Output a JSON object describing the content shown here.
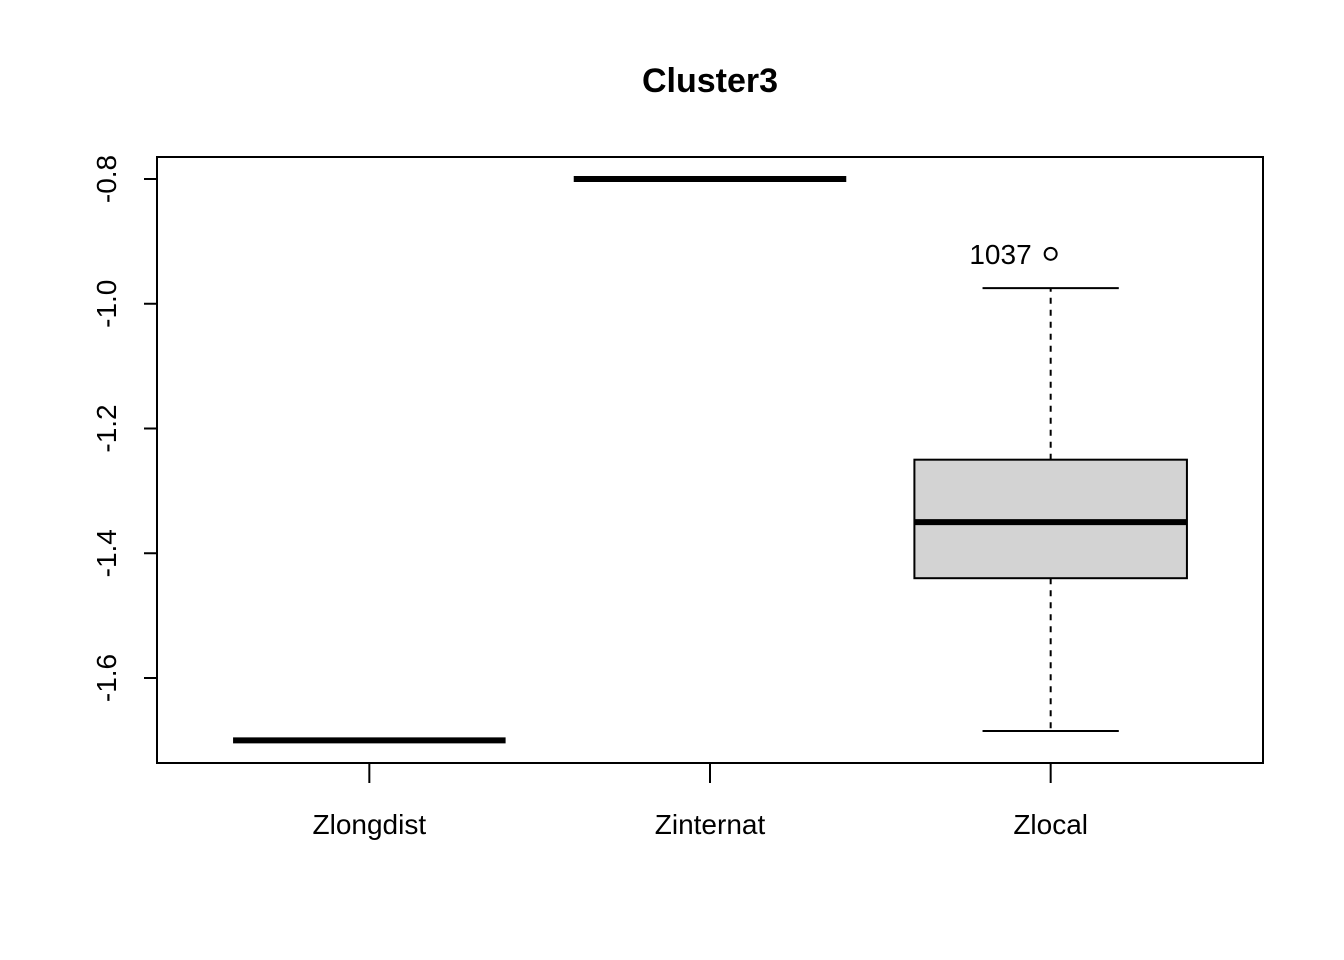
{
  "chart_data": {
    "type": "boxplot",
    "title": "Cluster3",
    "xlabel": "",
    "ylabel": "",
    "ylim": [
      -1.74,
      -0.765
    ],
    "yticks": [
      -0.8,
      -1.0,
      -1.2,
      -1.4,
      -1.6
    ],
    "ytick_labels": [
      "-0.8",
      "-1.0",
      "-1.2",
      "-1.4",
      "-1.6"
    ],
    "grid": false,
    "box_fill": "#d3d3d3",
    "categories": [
      "Zlongdist",
      "Zinternat",
      "Zlocal"
    ],
    "boxes": [
      {
        "name": "Zlongdist",
        "min": -1.7,
        "q1": -1.7,
        "median": -1.7,
        "q3": -1.7,
        "max": -1.7,
        "outliers": []
      },
      {
        "name": "Zinternat",
        "min": -0.8,
        "q1": -0.8,
        "median": -0.8,
        "q3": -0.8,
        "max": -0.8,
        "outliers": []
      },
      {
        "name": "Zlocal",
        "min": -1.685,
        "q1": -1.44,
        "median": -1.35,
        "q3": -1.25,
        "max": -0.975,
        "outliers": [
          {
            "value": -0.92,
            "label": "1037"
          }
        ]
      }
    ]
  }
}
